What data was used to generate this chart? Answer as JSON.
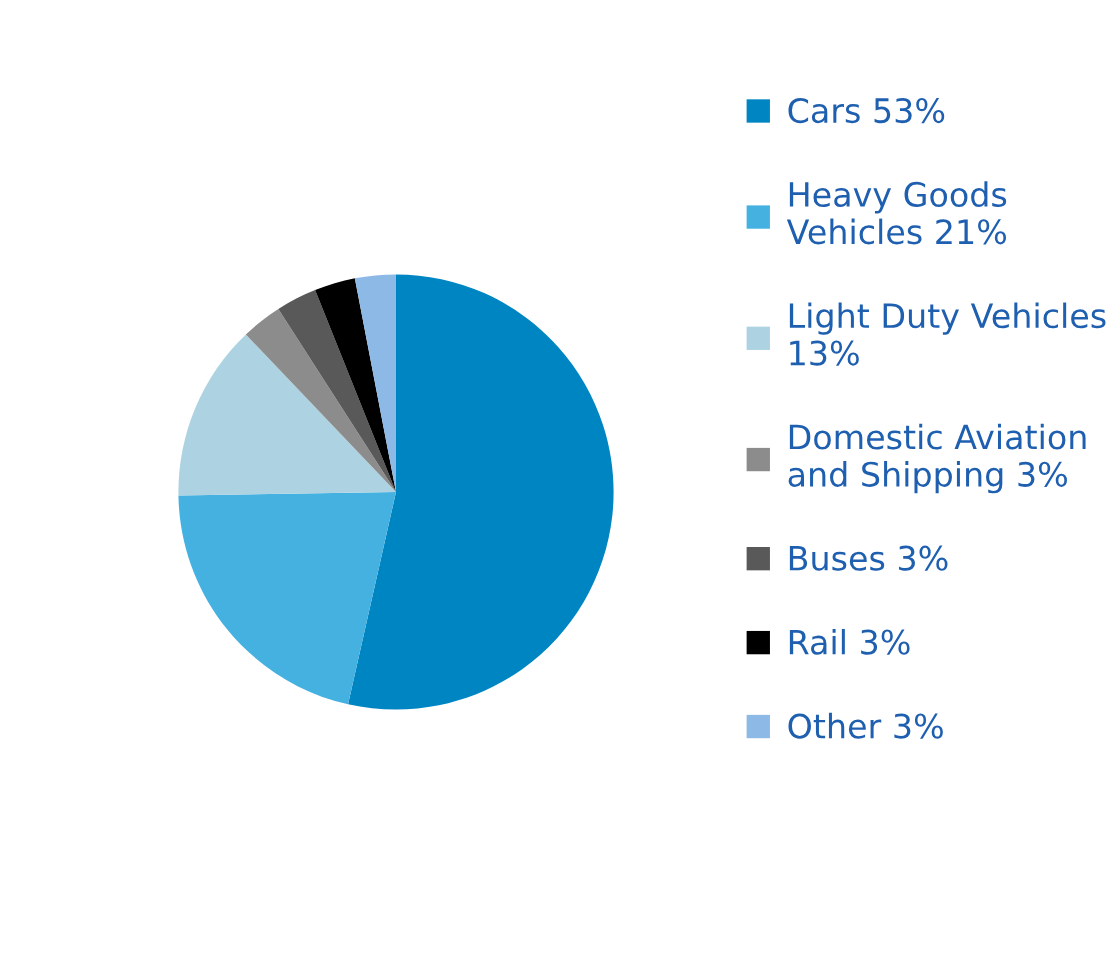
{
  "chart_data": {
    "type": "pie",
    "categories": [
      "Cars 53%",
      "Heavy Goods\nVehicles 21%",
      "Light Duty Vehicles\n13%",
      "Domestic Aviation\nand Shipping 3%",
      "Buses 3%",
      "Rail 3%",
      "Other 3%"
    ],
    "values": [
      53,
      21,
      13,
      3,
      3,
      3,
      3
    ],
    "colors": [
      "#0085c3",
      "#45b1e1",
      "#add3e2",
      "#8c8c8c",
      "#595959",
      "#000000",
      "#8db9e6"
    ],
    "legend": "right"
  }
}
